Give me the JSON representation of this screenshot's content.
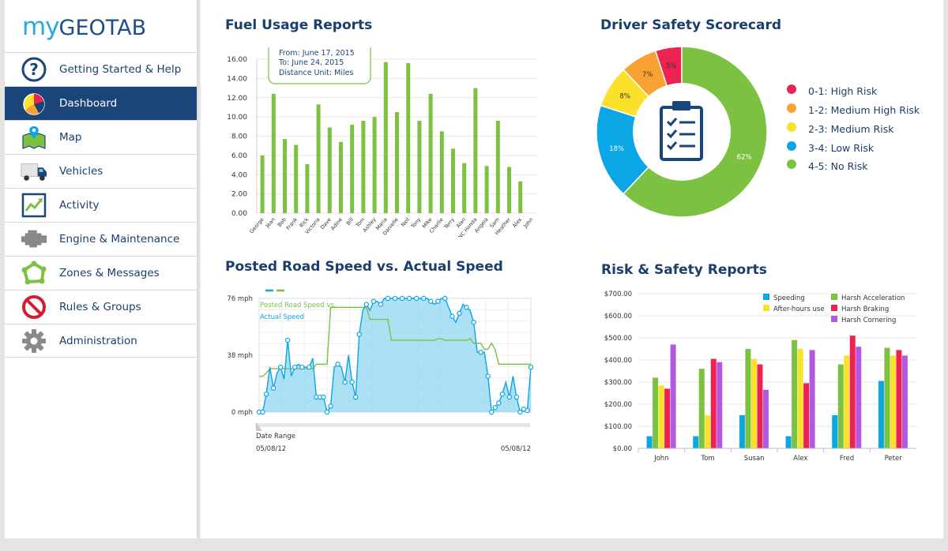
{
  "app": {
    "logo_my": "my",
    "logo_geotab": "GEOTAB"
  },
  "sidebar": {
    "items": [
      {
        "label": "Getting Started & Help",
        "icon": "help-icon",
        "active": false
      },
      {
        "label": "Dashboard",
        "icon": "dashboard-pie-icon",
        "active": true
      },
      {
        "label": "Map",
        "icon": "map-icon",
        "active": false
      },
      {
        "label": "Vehicles",
        "icon": "truck-icon",
        "active": false
      },
      {
        "label": "Activity",
        "icon": "activity-chart-icon",
        "active": false
      },
      {
        "label": "Engine & Maintenance",
        "icon": "engine-icon",
        "active": false
      },
      {
        "label": "Zones & Messages",
        "icon": "zones-icon",
        "active": false
      },
      {
        "label": "Rules & Groups",
        "icon": "no-entry-icon",
        "active": false
      },
      {
        "label": "Administration",
        "icon": "gear-icon",
        "active": false
      }
    ]
  },
  "panels": {
    "fuel_title": "Fuel Usage Reports",
    "safety_title": "Driver Safety Scorecard",
    "speed_title": "Posted Road Speed vs. Actual Speed",
    "risk_title": "Risk & Safety Reports"
  },
  "fuel_tooltip": {
    "from": "From: June 17, 2015",
    "to": "To: June 24, 2015",
    "unit": "Distance Unit: Miles"
  },
  "speed_chart": {
    "date_range_label": "Date Range",
    "start_date": "05/08/12",
    "end_date": "05/08/12"
  },
  "colors": {
    "green": "#7dc143",
    "blue": "#0aa6e6",
    "yellow": "#fbe12c",
    "orange": "#f7a233",
    "red": "#ee2250",
    "purple": "#b259e3",
    "navy": "#1a4578"
  },
  "chart_data": [
    {
      "id": "fuel",
      "type": "bar",
      "title": "Fuel Usage Reports",
      "categories": [
        "George",
        "Jean",
        "Bob",
        "Frank",
        "Rick",
        "Victoria",
        "Dave",
        "Adine",
        "Bill",
        "Tom",
        "Ashley",
        "Maria",
        "Danielle",
        "Neil",
        "Tony",
        "Mike",
        "Charlie",
        "Terry",
        "Alan",
        "NC Honda",
        "Angela",
        "Sam",
        "Heather",
        "Alex",
        "John"
      ],
      "values": [
        6.0,
        12.4,
        7.7,
        7.1,
        5.1,
        11.3,
        8.9,
        7.4,
        9.2,
        9.6,
        10.0,
        15.7,
        10.5,
        15.6,
        9.6,
        12.4,
        8.5,
        6.7,
        5.2,
        13.0,
        4.9,
        9.6,
        4.8,
        3.3,
        0
      ],
      "yticks": [
        "0.00",
        "2.00",
        "4.00",
        "6.00",
        "8.00",
        "10.00",
        "12.00",
        "14.00",
        "16.00"
      ],
      "ylim": [
        0,
        16
      ],
      "grid": true
    },
    {
      "id": "safety",
      "type": "pie",
      "title": "Driver Safety Scorecard",
      "slices": [
        {
          "label": "0-1: High Risk",
          "value": 5,
          "text": "5%",
          "color": "#ee2250"
        },
        {
          "label": "1-2: Medium High Risk",
          "value": 7,
          "text": "7%",
          "color": "#f7a233"
        },
        {
          "label": "2-3: Medium Risk",
          "value": 8,
          "text": "8%",
          "color": "#fbe12c"
        },
        {
          "label": "3-4: Low Risk",
          "value": 18,
          "text": "18%",
          "color": "#0aa6e6"
        },
        {
          "label": "4-5: No Risk",
          "value": 62,
          "text": "62%",
          "color": "#7dc143"
        }
      ],
      "legend": "right"
    },
    {
      "id": "speed",
      "type": "area",
      "title": "Posted Road Speed vs. Actual Speed",
      "yticks": [
        "0 mph",
        "38 mph",
        "76 mph"
      ],
      "ylim": [
        0,
        76
      ],
      "series": [
        {
          "name": "Posted Road Speed vs.",
          "color": "#7dc143",
          "values": [
            24,
            24,
            26,
            29,
            29,
            29,
            29,
            29,
            29,
            29,
            29,
            29,
            29,
            29,
            29,
            29,
            32,
            32,
            32,
            32,
            70,
            70,
            70,
            70,
            70,
            70,
            70,
            70,
            70,
            70,
            70,
            62,
            62,
            62,
            62,
            62,
            62,
            48,
            48,
            48,
            48,
            48,
            48,
            48,
            48,
            48,
            48,
            48,
            48,
            48,
            49,
            49,
            48,
            48,
            48,
            48,
            48,
            48,
            48,
            49,
            46,
            46,
            46,
            42,
            42,
            46,
            42,
            32,
            32,
            32,
            32,
            32,
            32,
            32,
            32,
            32,
            32
          ]
        },
        {
          "name": "Actual Speed",
          "color": "#0aa6e6",
          "values": [
            0,
            0,
            12,
            30,
            16,
            26,
            30,
            22,
            48,
            24,
            30,
            32,
            30,
            30,
            30,
            36,
            10,
            10,
            10,
            0,
            4,
            30,
            32,
            30,
            20,
            38,
            20,
            10,
            52,
            68,
            72,
            68,
            74,
            74,
            72,
            76,
            76,
            76,
            76,
            76,
            76,
            76,
            76,
            76,
            76,
            76,
            76,
            76,
            74,
            72,
            74,
            76,
            76,
            70,
            64,
            60,
            66,
            72,
            70,
            68,
            60,
            40,
            40,
            40,
            24,
            0,
            3,
            6,
            12,
            20,
            10,
            24,
            10,
            0,
            2,
            1,
            30
          ]
        }
      ]
    },
    {
      "id": "risk",
      "type": "bar",
      "title": "Risk & Safety Reports",
      "categories": [
        "John",
        "Tom",
        "Susan",
        "Alex",
        "Fred",
        "Peter"
      ],
      "series": [
        {
          "name": "Speeding",
          "color": "#0aa6e6",
          "values": [
            55,
            55,
            150,
            55,
            150,
            305
          ]
        },
        {
          "name": "Harsh Acceleration",
          "color": "#7dc143",
          "values": [
            320,
            360,
            450,
            490,
            380,
            455
          ]
        },
        {
          "name": "After-hours use",
          "color": "#fbe12c",
          "values": [
            285,
            150,
            405,
            450,
            420,
            420
          ]
        },
        {
          "name": "Harsh Braking",
          "color": "#ee2250",
          "values": [
            270,
            405,
            380,
            295,
            510,
            445
          ]
        },
        {
          "name": "Harsh Cornering",
          "color": "#b259e3",
          "values": [
            470,
            390,
            265,
            445,
            460,
            420
          ]
        }
      ],
      "yticks": [
        "$0.00",
        "$100.00",
        "$200.00",
        "$300.00",
        "$400.00",
        "$500.00",
        "$600.00",
        "$700.00"
      ],
      "ylim": [
        0,
        700
      ],
      "legend": "top-right"
    }
  ]
}
